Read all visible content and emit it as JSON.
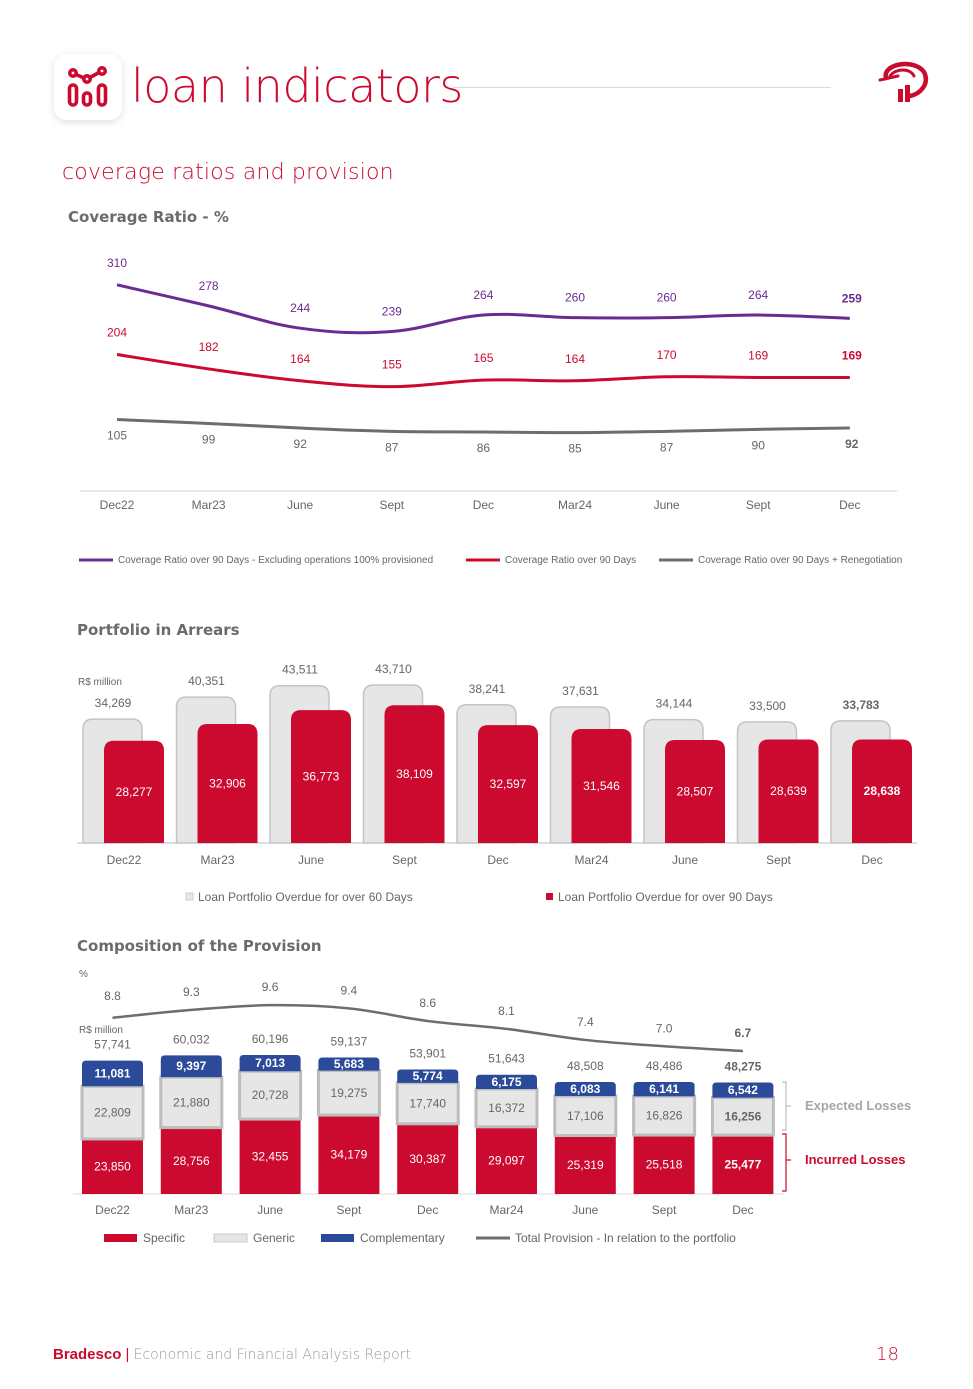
{
  "header": {
    "title": "loan indicators",
    "icon": "chart-indicators-icon",
    "logo": "bradesco-logo-icon"
  },
  "section": {
    "title": "coverage ratios and provision"
  },
  "colors": {
    "brand_red": "#cc092f",
    "purple": "#6b2c91",
    "gray_line": "#6d6d6d",
    "bar_gray": "#e6e6e6",
    "bar_gray_border": "#bdbdbd",
    "navy": "#2c4a9a",
    "text_gray": "#666666",
    "expected_losses": "#a6a6a6"
  },
  "chart_data": [
    {
      "id": "coverage_ratio",
      "type": "line",
      "title": "Coverage Ratio - %",
      "categories": [
        "Dec22",
        "Mar23",
        "June",
        "Sept",
        "Dec",
        "Mar24",
        "June",
        "Sept",
        "Dec"
      ],
      "series": [
        {
          "name": "Coverage Ratio over 90 Days - Excluding operations 100% provisioned",
          "color": "#6b2c91",
          "values": [
            310,
            278,
            244,
            239,
            264,
            260,
            260,
            264,
            259
          ]
        },
        {
          "name": "Coverage Ratio over 90 Days",
          "color": "#cc092f",
          "values": [
            204,
            182,
            164,
            155,
            165,
            164,
            170,
            169,
            169
          ]
        },
        {
          "name": "Coverage Ratio over 90 Days + Renegotiation",
          "color": "#6d6d6d",
          "values": [
            105,
            99,
            92,
            87,
            86,
            85,
            87,
            90,
            92
          ]
        }
      ],
      "xlabel": "",
      "ylabel": "",
      "grid": false,
      "legend": "bottom"
    },
    {
      "id": "portfolio_in_arrears",
      "type": "bar",
      "title": "Portfolio in Arrears",
      "unit_label": "R$ million",
      "categories": [
        "Dec22",
        "Mar23",
        "June",
        "Sept",
        "Dec",
        "Mar24",
        "June",
        "Sept",
        "Dec"
      ],
      "series": [
        {
          "name": "Loan Portfolio Overdue for over 60 Days",
          "color": "#e6e6e6",
          "values": [
            34269,
            40351,
            43511,
            43710,
            38241,
            37631,
            34144,
            33500,
            33783
          ],
          "labels": [
            "34,269",
            "40,351",
            "43,511",
            "43,710",
            "38,241",
            "37,631",
            "34,144",
            "33,500",
            "33,783"
          ]
        },
        {
          "name": "Loan Portfolio Overdue for over 90 Days",
          "color": "#cc092f",
          "values": [
            28277,
            32906,
            36773,
            38109,
            32597,
            31546,
            28507,
            28639,
            28638
          ],
          "labels": [
            "28,277",
            "32,906",
            "36,773",
            "38,109",
            "32,597",
            "31,546",
            "28,507",
            "28,639",
            "28,638"
          ]
        }
      ],
      "ylim": [
        0,
        45000
      ],
      "grid": false,
      "legend": "bottom"
    },
    {
      "id": "composition_of_provision",
      "type": "bar",
      "stacked": true,
      "title": "Composition of the Provision",
      "unit_label_line": "%",
      "unit_label_bars": "R$ million",
      "categories": [
        "Dec22",
        "Mar23",
        "June",
        "Sept",
        "Dec",
        "Mar24",
        "June",
        "Sept",
        "Dec"
      ],
      "series": [
        {
          "name": "Specific",
          "color": "#cc092f",
          "values": [
            23850,
            28756,
            32455,
            34179,
            30387,
            29097,
            25319,
            25518,
            25477
          ],
          "labels": [
            "23,850",
            "28,756",
            "32,455",
            "34,179",
            "30,387",
            "29,097",
            "25,319",
            "25,518",
            "25,477"
          ]
        },
        {
          "name": "Generic",
          "color": "#e6e6e6",
          "values": [
            22809,
            21880,
            20728,
            19275,
            17740,
            16372,
            17106,
            16826,
            16256
          ],
          "labels": [
            "22,809",
            "21,880",
            "20,728",
            "19,275",
            "17,740",
            "16,372",
            "17,106",
            "16,826",
            "16,256"
          ]
        },
        {
          "name": "Complementary",
          "color": "#2c4a9a",
          "values": [
            11081,
            9397,
            7013,
            5683,
            5774,
            6175,
            6083,
            6141,
            6542
          ],
          "labels": [
            "11,081",
            "9,397",
            "7,013",
            "5,683",
            "5,774",
            "6,175",
            "6,083",
            "6,141",
            "6,542"
          ]
        }
      ],
      "totals": [
        57741,
        60032,
        60196,
        59137,
        53901,
        51643,
        48508,
        48486,
        48275
      ],
      "total_labels": [
        "57,741",
        "60,032",
        "60,196",
        "59,137",
        "53,901",
        "51,643",
        "48,508",
        "48,486",
        "48,275"
      ],
      "line_series": {
        "name": "Total Provision - In relation to the portfolio",
        "color": "#6d6d6d",
        "values": [
          8.8,
          9.3,
          9.6,
          9.4,
          8.6,
          8.1,
          7.4,
          7.0,
          6.7
        ],
        "labels": [
          "8.8",
          "9.3",
          "9.6",
          "9.4",
          "8.6",
          "8.1",
          "7.4",
          "7.0",
          "6.7"
        ]
      },
      "annotations": [
        {
          "text": "Expected Losses",
          "spans": [
            "Generic",
            "Complementary"
          ],
          "color": "#a6a6a6"
        },
        {
          "text": "Incurred Losses",
          "spans": [
            "Specific"
          ],
          "color": "#cc092f"
        }
      ],
      "ylim": [
        0,
        62000
      ],
      "grid": false,
      "legend": "bottom"
    }
  ],
  "footer": {
    "brand": "Bradesco",
    "separator": "|",
    "report": "Economic and Financial Analysis Report",
    "page": "18"
  }
}
